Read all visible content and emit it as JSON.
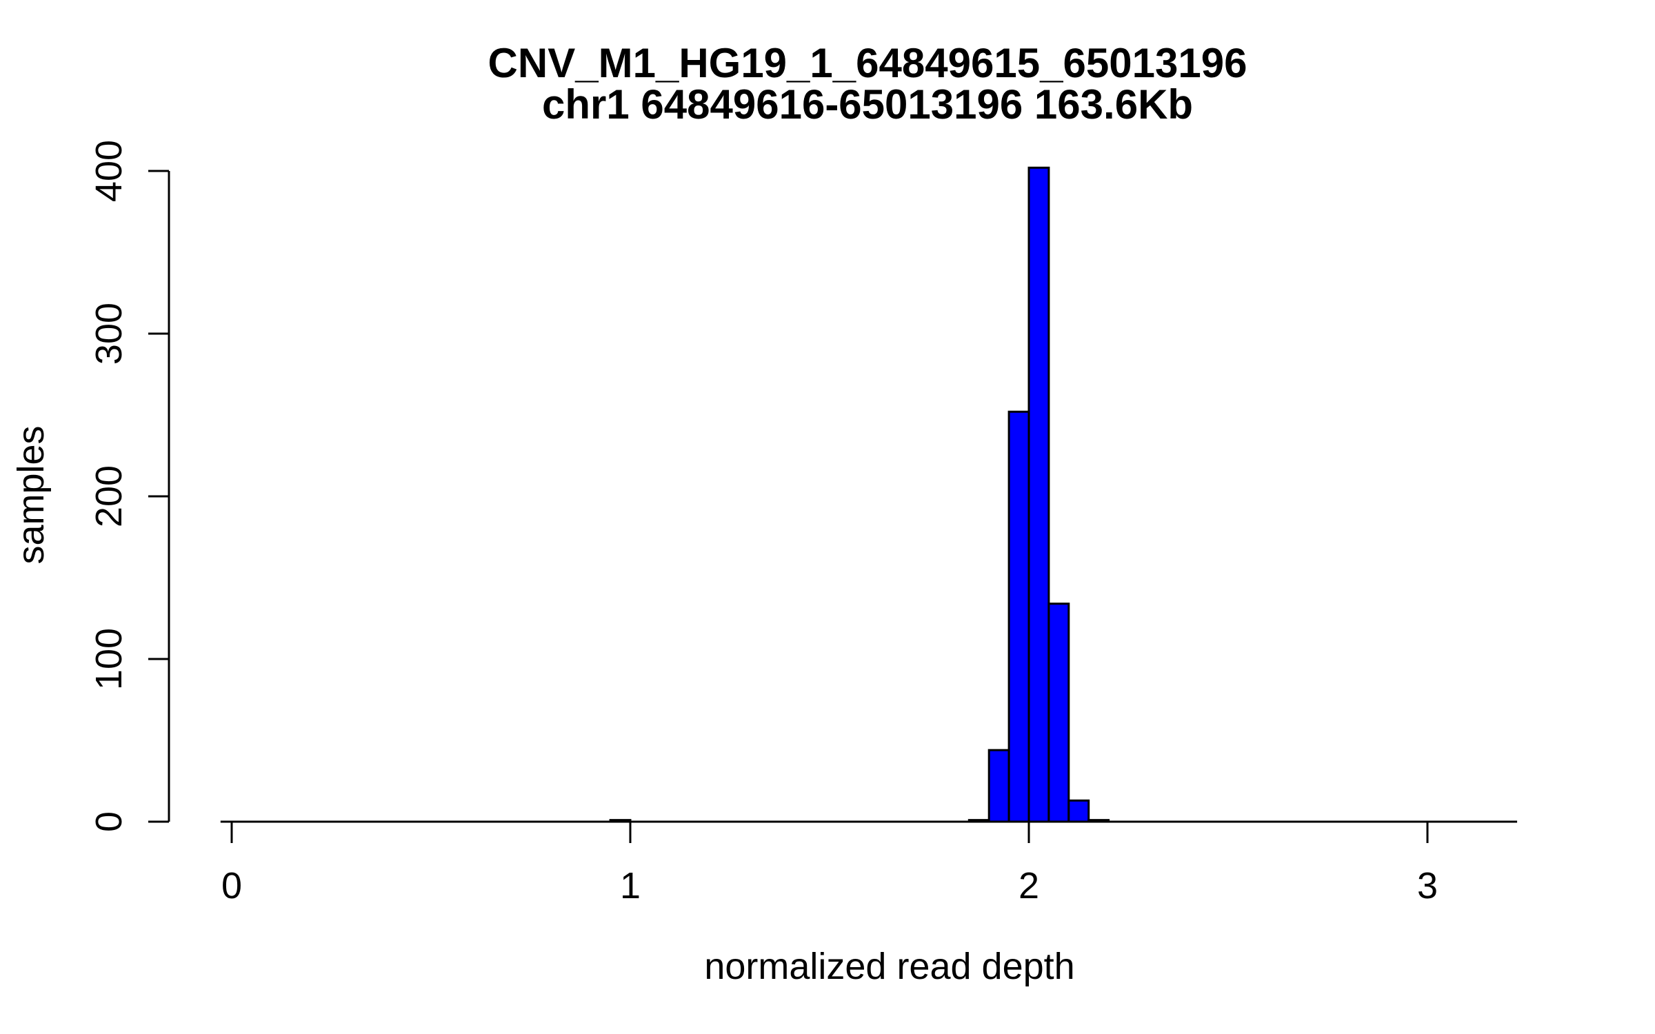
{
  "chart_data": {
    "type": "bar",
    "subtype": "histogram",
    "title": "CNV_M1_HG19_1_64849615_65013196",
    "subtitle": "chr1 64849616-65013196 163.6Kb",
    "xlabel": "normalized read depth",
    "ylabel": "samples",
    "x_tick_labels": [
      "0",
      "1",
      "2",
      "3"
    ],
    "x_tick_values": [
      0,
      1,
      2,
      3
    ],
    "y_tick_labels": [
      "0",
      "100",
      "200",
      "300",
      "400"
    ],
    "y_tick_values": [
      0,
      100,
      200,
      300,
      400
    ],
    "xlim": [
      -0.028,
      3.225
    ],
    "ylim": [
      0,
      400
    ],
    "grid": false,
    "legend": false,
    "background_color": "#FFFFFF",
    "bar_fill_color": "#0000FF",
    "bar_border_color": "#000000",
    "axis_color": "#000000",
    "bins": [
      {
        "x0": 0.95,
        "x1": 1.0,
        "count": 1
      },
      {
        "x0": 1.85,
        "x1": 1.9,
        "count": 1
      },
      {
        "x0": 1.9,
        "x1": 1.95,
        "count": 44
      },
      {
        "x0": 1.95,
        "x1": 2.0,
        "count": 252
      },
      {
        "x0": 2.0,
        "x1": 2.05,
        "count": 402
      },
      {
        "x0": 2.05,
        "x1": 2.1,
        "count": 134
      },
      {
        "x0": 2.1,
        "x1": 2.15,
        "count": 13
      },
      {
        "x0": 2.15,
        "x1": 2.2,
        "count": 1
      }
    ]
  }
}
